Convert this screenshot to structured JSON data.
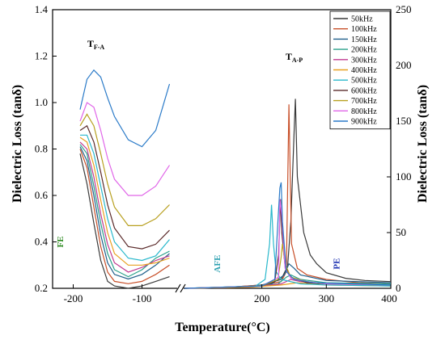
{
  "chart_data": {
    "type": "line",
    "xlabel": "Temperature(°C)",
    "ylabel_left": "Dielectric Loss (tanδ)",
    "ylabel_right": "Dielectric Loss (tanδ)",
    "left_panel": {
      "xlim": [
        -230,
        -50
      ],
      "ylim": [
        0.2,
        1.4
      ],
      "xticks": [
        -200,
        -100
      ],
      "yticks": [
        0.2,
        0.4,
        0.6,
        0.8,
        1.0,
        1.2,
        1.4
      ],
      "ytick_labels": [
        "0.2",
        "0.4",
        "0.6",
        "0.8",
        "1.0",
        "1.2",
        "1.4"
      ]
    },
    "right_panel": {
      "xlim": [
        80,
        400
      ],
      "ylim": [
        0,
        250
      ],
      "xticks": [
        200,
        300,
        400
      ],
      "yticks": [
        0,
        50,
        100,
        150,
        200,
        250
      ]
    },
    "legend_position": "top-right",
    "annotations": [
      {
        "text": "FE",
        "color": "#2e8b22",
        "x": -215,
        "y": 0.4
      },
      {
        "text": "AFE",
        "color": "#2a9fb0",
        "x": 135,
        "y": 22
      },
      {
        "text": "PE",
        "color": "#1a2fb0",
        "x": 320,
        "y": 22
      }
    ],
    "phase_markers": [
      {
        "main": "T",
        "sub": "F-A",
        "x": -167,
        "y": 1.24
      },
      {
        "main": "T",
        "sub": "A-P",
        "x": 250,
        "y": 205
      }
    ],
    "series": [
      {
        "name": "50kHz",
        "color": "#3a3a3a",
        "left": [
          [
            -190,
            0.78
          ],
          [
            -180,
            0.65
          ],
          [
            -170,
            0.48
          ],
          [
            -160,
            0.32
          ],
          [
            -150,
            0.23
          ],
          [
            -140,
            0.21
          ],
          [
            -120,
            0.2
          ],
          [
            -100,
            0.21
          ],
          [
            -80,
            0.23
          ],
          [
            -60,
            0.25
          ]
        ],
        "right": [
          [
            80,
            0
          ],
          [
            150,
            1
          ],
          [
            200,
            3
          ],
          [
            230,
            8
          ],
          [
            240,
            20
          ],
          [
            245,
            60
          ],
          [
            250,
            140
          ],
          [
            252,
            170
          ],
          [
            255,
            100
          ],
          [
            265,
            50
          ],
          [
            275,
            30
          ],
          [
            285,
            22
          ],
          [
            300,
            14
          ],
          [
            330,
            9
          ],
          [
            360,
            7
          ],
          [
            400,
            6
          ]
        ]
      },
      {
        "name": "100kHz",
        "color": "#c8502a",
        "left": [
          [
            -190,
            0.8
          ],
          [
            -180,
            0.72
          ],
          [
            -170,
            0.55
          ],
          [
            -160,
            0.38
          ],
          [
            -150,
            0.27
          ],
          [
            -140,
            0.23
          ],
          [
            -120,
            0.22
          ],
          [
            -100,
            0.23
          ],
          [
            -80,
            0.26
          ],
          [
            -60,
            0.3
          ]
        ],
        "right": [
          [
            80,
            0
          ],
          [
            150,
            1
          ],
          [
            200,
            3
          ],
          [
            230,
            6
          ],
          [
            238,
            15
          ],
          [
            242,
            165
          ],
          [
            246,
            40
          ],
          [
            255,
            18
          ],
          [
            270,
            12
          ],
          [
            300,
            8
          ],
          [
            350,
            5
          ],
          [
            400,
            4
          ]
        ]
      },
      {
        "name": "150kHz",
        "color": "#1f5f8b",
        "left": [
          [
            -190,
            0.81
          ],
          [
            -180,
            0.75
          ],
          [
            -170,
            0.6
          ],
          [
            -160,
            0.43
          ],
          [
            -150,
            0.31
          ],
          [
            -140,
            0.26
          ],
          [
            -120,
            0.24
          ],
          [
            -100,
            0.26
          ],
          [
            -80,
            0.3
          ],
          [
            -60,
            0.35
          ]
        ],
        "right": [
          [
            80,
            0
          ],
          [
            170,
            1
          ],
          [
            215,
            4
          ],
          [
            235,
            12
          ],
          [
            242,
            22
          ],
          [
            250,
            18
          ],
          [
            260,
            12
          ],
          [
            300,
            7
          ],
          [
            400,
            5
          ]
        ]
      },
      {
        "name": "200kHz",
        "color": "#2aa08a",
        "left": [
          [
            -190,
            0.82
          ],
          [
            -180,
            0.78
          ],
          [
            -170,
            0.64
          ],
          [
            -160,
            0.48
          ],
          [
            -150,
            0.35
          ],
          [
            -140,
            0.28
          ],
          [
            -120,
            0.25
          ],
          [
            -100,
            0.28
          ],
          [
            -80,
            0.33
          ],
          [
            -60,
            0.36
          ]
        ],
        "right": [
          [
            80,
            0
          ],
          [
            170,
            1
          ],
          [
            225,
            4
          ],
          [
            238,
            10
          ],
          [
            245,
            12
          ],
          [
            260,
            8
          ],
          [
            300,
            5
          ],
          [
            400,
            4
          ]
        ]
      },
      {
        "name": "300kHz",
        "color": "#c03a90",
        "left": [
          [
            -190,
            0.83
          ],
          [
            -180,
            0.8
          ],
          [
            -170,
            0.68
          ],
          [
            -160,
            0.52
          ],
          [
            -150,
            0.39
          ],
          [
            -140,
            0.31
          ],
          [
            -120,
            0.27
          ],
          [
            -100,
            0.29
          ],
          [
            -80,
            0.32
          ],
          [
            -60,
            0.34
          ]
        ],
        "right": [
          [
            80,
            0
          ],
          [
            180,
            1
          ],
          [
            230,
            4
          ],
          [
            245,
            8
          ],
          [
            260,
            6
          ],
          [
            300,
            4
          ],
          [
            400,
            3
          ]
        ]
      },
      {
        "name": "400kHz",
        "color": "#e8a020",
        "left": [
          [
            -190,
            0.85
          ],
          [
            -180,
            0.83
          ],
          [
            -170,
            0.73
          ],
          [
            -160,
            0.58
          ],
          [
            -150,
            0.44
          ],
          [
            -140,
            0.35
          ],
          [
            -120,
            0.3
          ],
          [
            -100,
            0.3
          ],
          [
            -80,
            0.31
          ],
          [
            -60,
            0.33
          ]
        ],
        "right": [
          [
            80,
            0
          ],
          [
            180,
            1
          ],
          [
            230,
            3
          ],
          [
            255,
            5
          ],
          [
            300,
            3
          ],
          [
            400,
            2
          ]
        ]
      },
      {
        "name": "500kHz",
        "color": "#29b8cc",
        "left": [
          [
            -190,
            0.86
          ],
          [
            -180,
            0.86
          ],
          [
            -170,
            0.78
          ],
          [
            -160,
            0.64
          ],
          [
            -150,
            0.5
          ],
          [
            -140,
            0.4
          ],
          [
            -120,
            0.33
          ],
          [
            -100,
            0.32
          ],
          [
            -80,
            0.34
          ],
          [
            -60,
            0.41
          ]
        ],
        "right": [
          [
            80,
            0
          ],
          [
            190,
            2
          ],
          [
            205,
            8
          ],
          [
            212,
            40
          ],
          [
            215,
            75
          ],
          [
            218,
            40
          ],
          [
            222,
            15
          ],
          [
            230,
            8
          ],
          [
            260,
            4
          ],
          [
            300,
            3
          ],
          [
            400,
            2
          ]
        ]
      },
      {
        "name": "600kHz",
        "color": "#5a2a2a",
        "left": [
          [
            -190,
            0.88
          ],
          [
            -180,
            0.9
          ],
          [
            -170,
            0.83
          ],
          [
            -160,
            0.7
          ],
          [
            -150,
            0.56
          ],
          [
            -140,
            0.46
          ],
          [
            -120,
            0.38
          ],
          [
            -100,
            0.37
          ],
          [
            -80,
            0.39
          ],
          [
            -60,
            0.45
          ]
        ],
        "right": [
          [
            80,
            0
          ],
          [
            200,
            2
          ],
          [
            220,
            6
          ],
          [
            226,
            30
          ],
          [
            229,
            80
          ],
          [
            231,
            50
          ],
          [
            236,
            20
          ],
          [
            245,
            10
          ],
          [
            270,
            5
          ],
          [
            300,
            4
          ],
          [
            400,
            3
          ]
        ]
      },
      {
        "name": "700kHz",
        "color": "#b8a020",
        "left": [
          [
            -190,
            0.9
          ],
          [
            -180,
            0.95
          ],
          [
            -170,
            0.9
          ],
          [
            -160,
            0.78
          ],
          [
            -150,
            0.65
          ],
          [
            -140,
            0.55
          ],
          [
            -120,
            0.47
          ],
          [
            -100,
            0.47
          ],
          [
            -80,
            0.5
          ],
          [
            -60,
            0.56
          ]
        ],
        "right": [
          [
            80,
            0
          ],
          [
            200,
            2
          ],
          [
            225,
            8
          ],
          [
            230,
            28
          ],
          [
            232,
            40
          ],
          [
            236,
            22
          ],
          [
            245,
            10
          ],
          [
            270,
            6
          ],
          [
            300,
            4
          ],
          [
            400,
            3
          ]
        ]
      },
      {
        "name": "800kHz",
        "color": "#e066e8",
        "left": [
          [
            -190,
            0.92
          ],
          [
            -180,
            1.0
          ],
          [
            -170,
            0.98
          ],
          [
            -160,
            0.88
          ],
          [
            -150,
            0.76
          ],
          [
            -140,
            0.67
          ],
          [
            -120,
            0.6
          ],
          [
            -100,
            0.6
          ],
          [
            -80,
            0.64
          ],
          [
            -60,
            0.73
          ]
        ],
        "right": [
          [
            80,
            0
          ],
          [
            200,
            2
          ],
          [
            226,
            10
          ],
          [
            228,
            80
          ],
          [
            231,
            65
          ],
          [
            236,
            18
          ],
          [
            245,
            9
          ],
          [
            270,
            6
          ],
          [
            300,
            4
          ],
          [
            400,
            3
          ]
        ]
      },
      {
        "name": "900kHz",
        "color": "#2a7ac8",
        "left": [
          [
            -190,
            0.97
          ],
          [
            -180,
            1.1
          ],
          [
            -170,
            1.14
          ],
          [
            -160,
            1.11
          ],
          [
            -150,
            1.02
          ],
          [
            -140,
            0.94
          ],
          [
            -120,
            0.84
          ],
          [
            -100,
            0.81
          ],
          [
            -80,
            0.88
          ],
          [
            -60,
            1.08
          ]
        ],
        "right": [
          [
            80,
            0
          ],
          [
            200,
            2
          ],
          [
            220,
            8
          ],
          [
            225,
            60
          ],
          [
            228,
            90
          ],
          [
            230,
            95
          ],
          [
            232,
            60
          ],
          [
            238,
            15
          ],
          [
            250,
            8
          ],
          [
            280,
            5
          ],
          [
            400,
            3
          ]
        ]
      }
    ]
  }
}
